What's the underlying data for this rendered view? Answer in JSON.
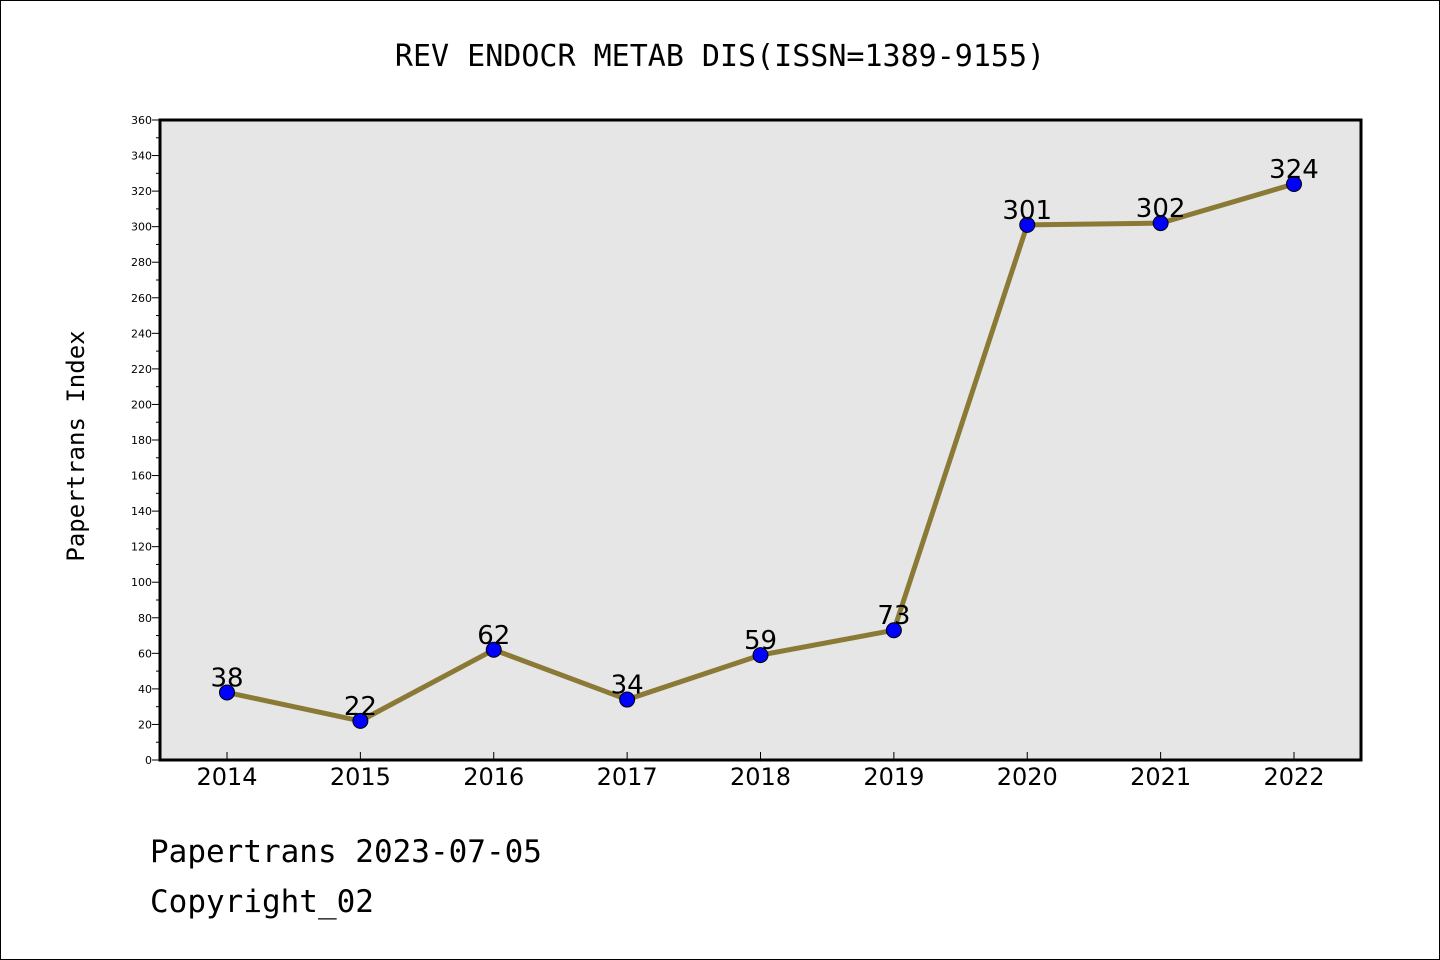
{
  "chart_data": {
    "type": "line",
    "title": "REV ENDOCR METAB DIS(ISSN=1389-9155)",
    "xlabel": "",
    "ylabel": "Papertrans Index",
    "categories": [
      "2014",
      "2015",
      "2016",
      "2017",
      "2018",
      "2019",
      "2020",
      "2021",
      "2022"
    ],
    "series": [
      {
        "values": [
          38,
          22,
          62,
          34,
          59,
          73,
          301,
          302,
          324
        ]
      }
    ],
    "ylim": [
      0,
      360
    ],
    "yticks": [
      0,
      20,
      40,
      60,
      80,
      100,
      120,
      140,
      160,
      180,
      200,
      220,
      240,
      260,
      280,
      300,
      320,
      340,
      360
    ],
    "grid": false,
    "legend": "none",
    "data_labels": true,
    "colors": {
      "line": "#8b7a35",
      "marker": "#0000ff",
      "marker_edge": "#000000",
      "plot_background": "#e6e6e6",
      "axes_border": "#000000"
    }
  },
  "footer": {
    "line1": "Papertrans 2023-07-05",
    "line2": "Copyright_02"
  }
}
